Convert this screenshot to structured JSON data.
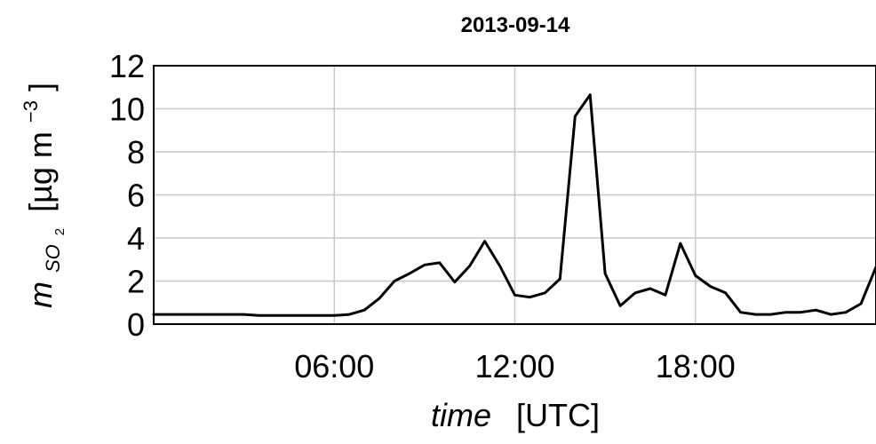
{
  "chart_data": {
    "type": "line",
    "title": "2013-09-14",
    "xlabel_italic": "time",
    "xlabel_unit": "[UTC]",
    "ylabel_symbol": "m",
    "ylabel_subscript": "SO",
    "ylabel_subscript_index": "2",
    "ylabel_unit_open": "[µg m",
    "ylabel_unit_exp": "−3",
    "ylabel_unit_close": "]",
    "x_unit": "hours UTC",
    "xlim": [
      0,
      24
    ],
    "ylim": [
      0,
      12
    ],
    "grid": true,
    "x_ticks": [
      {
        "value": 6,
        "label": "06:00"
      },
      {
        "value": 12,
        "label": "12:00"
      },
      {
        "value": 18,
        "label": "18:00"
      }
    ],
    "y_ticks": [
      {
        "value": 0,
        "label": "0"
      },
      {
        "value": 2,
        "label": "2"
      },
      {
        "value": 4,
        "label": "4"
      },
      {
        "value": 6,
        "label": "6"
      },
      {
        "value": 8,
        "label": "8"
      },
      {
        "value": 10,
        "label": "10"
      },
      {
        "value": 12,
        "label": "12"
      }
    ],
    "series": [
      {
        "color": "#000000",
        "x": [
          0,
          0.5,
          1,
          1.5,
          2,
          2.5,
          3,
          3.5,
          4,
          4.5,
          5,
          5.5,
          6,
          6.5,
          7,
          7.5,
          8,
          8.5,
          9,
          9.5,
          10,
          10.5,
          11,
          11.5,
          12,
          12.5,
          13,
          13.5,
          14,
          14.5,
          15,
          15.5,
          16,
          16.5,
          17,
          17.5,
          18,
          18.5,
          19,
          19.5,
          20,
          20.5,
          21,
          21.5,
          22,
          22.5,
          23,
          23.5,
          24
        ],
        "y": [
          0.45,
          0.45,
          0.45,
          0.45,
          0.45,
          0.45,
          0.45,
          0.4,
          0.4,
          0.4,
          0.4,
          0.4,
          0.4,
          0.45,
          0.65,
          1.2,
          2.0,
          2.35,
          2.75,
          2.85,
          1.95,
          2.7,
          3.85,
          2.7,
          1.35,
          1.25,
          1.45,
          2.1,
          9.65,
          10.65,
          2.35,
          0.85,
          1.45,
          1.65,
          1.35,
          3.75,
          2.25,
          1.75,
          1.45,
          0.55,
          0.45,
          0.45,
          0.55,
          0.55,
          0.65,
          0.45,
          0.55,
          0.95,
          2.65
        ]
      }
    ]
  }
}
